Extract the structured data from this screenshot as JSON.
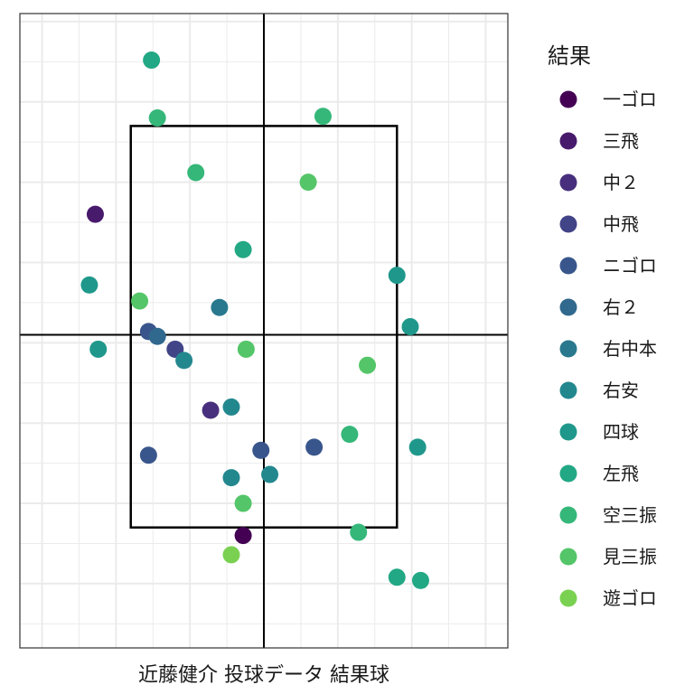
{
  "chart_data": {
    "type": "scatter",
    "xlabel": "近藤健介 投球データ 結果球",
    "xlim": [
      -1.65,
      1.65
    ],
    "ylim": [
      0.1,
      4.05
    ],
    "grid": true,
    "strike_zone": {
      "x": [
        -0.9,
        0.9
      ],
      "y": [
        0.85,
        3.35
      ]
    },
    "crosshair": {
      "x": 0.0,
      "y": 2.05
    },
    "legend": {
      "title": "結果",
      "position": "right"
    },
    "categories": [
      {
        "name": "一ゴロ",
        "color": "#440154"
      },
      {
        "name": "三飛",
        "color": "#481A6C"
      },
      {
        "name": "中２",
        "color": "#472F7D"
      },
      {
        "name": "中飛",
        "color": "#414487"
      },
      {
        "name": "ニゴロ",
        "color": "#39568C"
      },
      {
        "name": "右２",
        "color": "#31688E"
      },
      {
        "name": "右中本",
        "color": "#2A788E"
      },
      {
        "name": "右安",
        "color": "#23888E"
      },
      {
        "name": "四球",
        "color": "#1F988B"
      },
      {
        "name": "左飛",
        "color": "#22A884"
      },
      {
        "name": "空三振",
        "color": "#35B779"
      },
      {
        "name": "見三振",
        "color": "#54C568"
      },
      {
        "name": "遊ゴロ",
        "color": "#7AD151"
      }
    ],
    "points": [
      {
        "x": -0.76,
        "y": 3.76,
        "c": 9
      },
      {
        "x": -0.72,
        "y": 3.4,
        "c": 10
      },
      {
        "x": 0.4,
        "y": 3.41,
        "c": 10
      },
      {
        "x": -0.46,
        "y": 3.06,
        "c": 10
      },
      {
        "x": 0.3,
        "y": 3.0,
        "c": 11
      },
      {
        "x": -1.14,
        "y": 2.8,
        "c": 1
      },
      {
        "x": -0.14,
        "y": 2.58,
        "c": 9
      },
      {
        "x": 0.9,
        "y": 2.42,
        "c": 8
      },
      {
        "x": -1.18,
        "y": 2.36,
        "c": 8
      },
      {
        "x": -0.84,
        "y": 2.26,
        "c": 11
      },
      {
        "x": -0.3,
        "y": 2.22,
        "c": 6
      },
      {
        "x": 0.99,
        "y": 2.1,
        "c": 8
      },
      {
        "x": -0.78,
        "y": 2.07,
        "c": 4
      },
      {
        "x": -0.72,
        "y": 2.04,
        "c": 5
      },
      {
        "x": -1.12,
        "y": 1.96,
        "c": 8
      },
      {
        "x": -0.6,
        "y": 1.96,
        "c": 3
      },
      {
        "x": -0.12,
        "y": 1.96,
        "c": 11
      },
      {
        "x": -0.54,
        "y": 1.89,
        "c": 7
      },
      {
        "x": 0.7,
        "y": 1.86,
        "c": 11
      },
      {
        "x": -0.22,
        "y": 1.6,
        "c": 7
      },
      {
        "x": -0.36,
        "y": 1.58,
        "c": 2
      },
      {
        "x": 0.58,
        "y": 1.43,
        "c": 10
      },
      {
        "x": 1.04,
        "y": 1.35,
        "c": 8
      },
      {
        "x": 0.34,
        "y": 1.35,
        "c": 4
      },
      {
        "x": -0.02,
        "y": 1.33,
        "c": 4
      },
      {
        "x": -0.78,
        "y": 1.3,
        "c": 4
      },
      {
        "x": 0.04,
        "y": 1.18,
        "c": 7
      },
      {
        "x": -0.22,
        "y": 1.16,
        "c": 7
      },
      {
        "x": -0.14,
        "y": 1.0,
        "c": 11
      },
      {
        "x": 0.64,
        "y": 0.82,
        "c": 10
      },
      {
        "x": -0.14,
        "y": 0.8,
        "c": 0
      },
      {
        "x": -0.22,
        "y": 0.68,
        "c": 12
      },
      {
        "x": 0.9,
        "y": 0.54,
        "c": 9
      },
      {
        "x": 1.06,
        "y": 0.52,
        "c": 9
      }
    ]
  }
}
